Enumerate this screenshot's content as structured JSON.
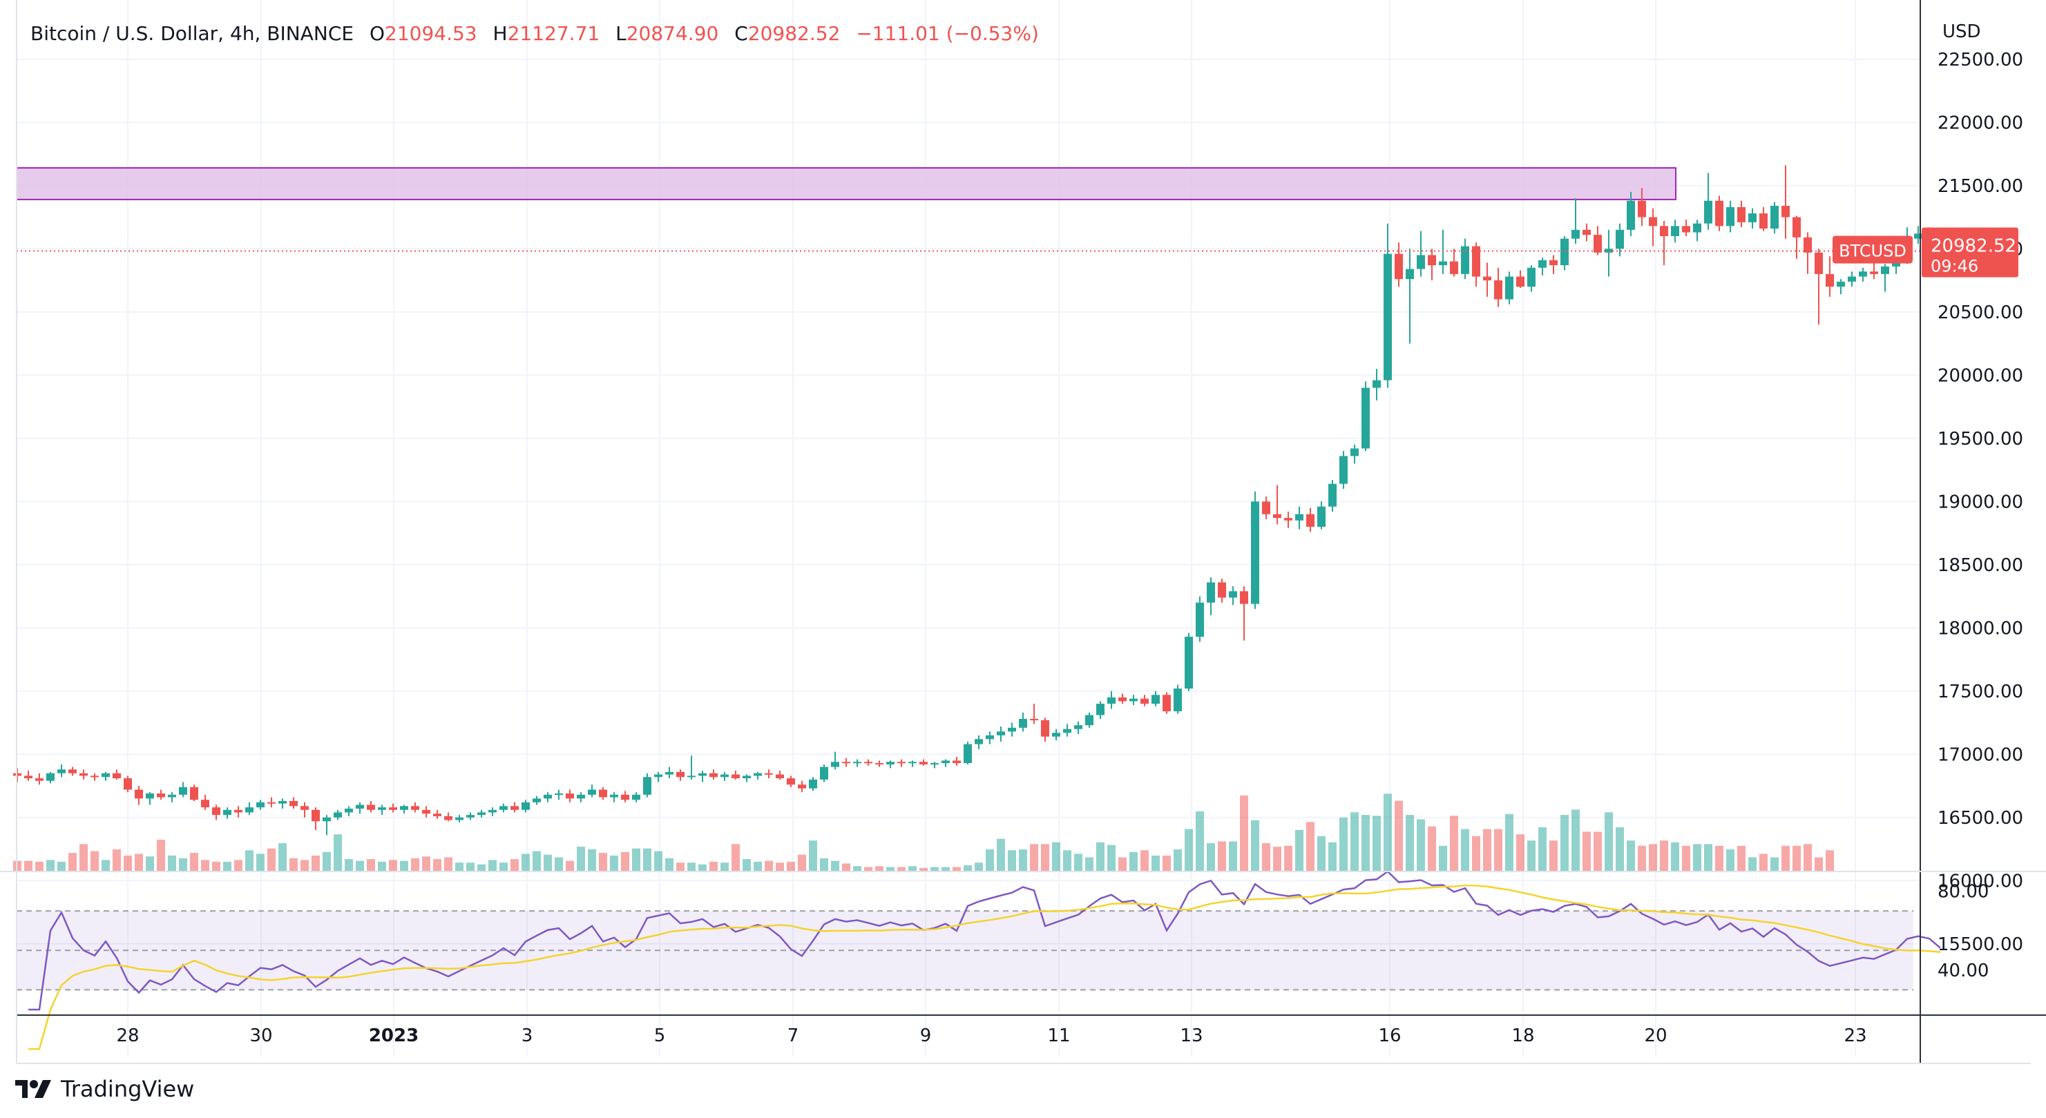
{
  "legend": {
    "symbol": "Bitcoin / U.S. Dollar, 4h, BINANCE",
    "open_label": "O",
    "open": "21094.53",
    "high_label": "H",
    "high": "21127.71",
    "low_label": "L",
    "low": "20874.90",
    "close_label": "C",
    "close": "20982.52",
    "change": "−111.01 (−0.53%)"
  },
  "price_axis": {
    "currency": "USD"
  },
  "last_price": {
    "symbol": "BTCUSD",
    "price": "20982.52",
    "countdown": "09:46"
  },
  "brand": {
    "name": "TradingView",
    "logo_icon": "tradingview-logo-icon"
  },
  "colors": {
    "up": "#26a69a",
    "down": "#ef5350",
    "rsi": "#7e57c2",
    "rsi_ma": "#f5d32d",
    "zone_fill": "#e1bee7",
    "zone_border": "#9c27b0",
    "up_volume": "#26a69a80",
    "down_volume": "#ef535080",
    "grid": "#f0f3fa"
  },
  "chart_data": {
    "type": "candlestick",
    "title": "Bitcoin / U.S. Dollar, 4h, BINANCE",
    "y_range": [
      15100,
      22750
    ],
    "y_ticks": [
      "22500.00",
      "22000.00",
      "21500.00",
      "21000.00",
      "20500.00",
      "20000.00",
      "19500.00",
      "19000.00",
      "18500.00",
      "18000.00",
      "17500.00",
      "17000.00",
      "16500.00",
      "16000.00",
      "15500.00"
    ],
    "x_ticks": [
      "28",
      "30",
      "2023",
      "3",
      "5",
      "7",
      "9",
      "11",
      "13",
      "16",
      "18",
      "20",
      "23"
    ],
    "resistance_zone": [
      21390,
      21640
    ],
    "last_price_line": 20982.52,
    "grid": true,
    "ohlc": [
      [
        16850,
        16890,
        16780,
        16830
      ],
      [
        16830,
        16870,
        16790,
        16810
      ],
      [
        16810,
        16850,
        16760,
        16790
      ],
      [
        16790,
        16860,
        16770,
        16850
      ],
      [
        16850,
        16920,
        16820,
        16880
      ],
      [
        16880,
        16900,
        16830,
        16850
      ],
      [
        16850,
        16880,
        16800,
        16830
      ],
      [
        16830,
        16850,
        16790,
        16820
      ],
      [
        16820,
        16860,
        16790,
        16850
      ],
      [
        16850,
        16880,
        16800,
        16810
      ],
      [
        16810,
        16830,
        16700,
        16720
      ],
      [
        16720,
        16750,
        16600,
        16650
      ],
      [
        16650,
        16700,
        16600,
        16690
      ],
      [
        16690,
        16720,
        16640,
        16660
      ],
      [
        16660,
        16700,
        16620,
        16680
      ],
      [
        16680,
        16780,
        16660,
        16740
      ],
      [
        16740,
        16760,
        16630,
        16640
      ],
      [
        16640,
        16680,
        16560,
        16580
      ],
      [
        16580,
        16600,
        16480,
        16520
      ],
      [
        16520,
        16580,
        16490,
        16560
      ],
      [
        16560,
        16590,
        16500,
        16540
      ],
      [
        16540,
        16620,
        16520,
        16580
      ],
      [
        16580,
        16640,
        16560,
        16620
      ],
      [
        16620,
        16660,
        16580,
        16610
      ],
      [
        16610,
        16650,
        16570,
        16630
      ],
      [
        16630,
        16660,
        16570,
        16590
      ],
      [
        16590,
        16620,
        16500,
        16560
      ],
      [
        16560,
        16580,
        16400,
        16470
      ],
      [
        16470,
        16520,
        16360,
        16500
      ],
      [
        16500,
        16560,
        16480,
        16540
      ],
      [
        16540,
        16590,
        16510,
        16570
      ],
      [
        16570,
        16620,
        16530,
        16600
      ],
      [
        16600,
        16630,
        16540,
        16560
      ],
      [
        16560,
        16600,
        16520,
        16580
      ],
      [
        16580,
        16610,
        16540,
        16560
      ],
      [
        16560,
        16600,
        16530,
        16590
      ],
      [
        16590,
        16620,
        16540,
        16560
      ],
      [
        16560,
        16590,
        16500,
        16530
      ],
      [
        16530,
        16560,
        16490,
        16510
      ],
      [
        16510,
        16540,
        16470,
        16480
      ],
      [
        16480,
        16520,
        16460,
        16500
      ],
      [
        16500,
        16540,
        16480,
        16520
      ],
      [
        16520,
        16560,
        16500,
        16540
      ],
      [
        16540,
        16580,
        16510,
        16560
      ],
      [
        16560,
        16610,
        16540,
        16590
      ],
      [
        16590,
        16620,
        16540,
        16560
      ],
      [
        16560,
        16640,
        16540,
        16620
      ],
      [
        16620,
        16670,
        16600,
        16650
      ],
      [
        16650,
        16700,
        16620,
        16680
      ],
      [
        16680,
        16720,
        16640,
        16690
      ],
      [
        16690,
        16720,
        16620,
        16650
      ],
      [
        16650,
        16700,
        16620,
        16680
      ],
      [
        16680,
        16760,
        16660,
        16720
      ],
      [
        16720,
        16740,
        16640,
        16660
      ],
      [
        16660,
        16700,
        16620,
        16680
      ],
      [
        16680,
        16710,
        16620,
        16640
      ],
      [
        16640,
        16700,
        16620,
        16680
      ],
      [
        16680,
        16850,
        16660,
        16820
      ],
      [
        16820,
        16860,
        16780,
        16840
      ],
      [
        16840,
        16900,
        16810,
        16860
      ],
      [
        16860,
        16880,
        16790,
        16820
      ],
      [
        16820,
        16990,
        16800,
        16830
      ],
      [
        16830,
        16870,
        16780,
        16850
      ],
      [
        16850,
        16880,
        16800,
        16820
      ],
      [
        16820,
        16860,
        16790,
        16840
      ],
      [
        16840,
        16870,
        16800,
        16810
      ],
      [
        16810,
        16840,
        16780,
        16830
      ],
      [
        16830,
        16860,
        16800,
        16850
      ],
      [
        16850,
        16880,
        16810,
        16840
      ],
      [
        16840,
        16870,
        16800,
        16810
      ],
      [
        16810,
        16830,
        16740,
        16760
      ],
      [
        16760,
        16790,
        16700,
        16730
      ],
      [
        16730,
        16820,
        16710,
        16800
      ],
      [
        16800,
        16920,
        16780,
        16900
      ],
      [
        16900,
        17020,
        16880,
        16940
      ],
      [
        16940,
        16970,
        16900,
        16930
      ],
      [
        16930,
        16960,
        16900,
        16940
      ],
      [
        16940,
        16960,
        16910,
        16930
      ],
      [
        16930,
        16950,
        16900,
        16920
      ],
      [
        16920,
        16950,
        16890,
        16940
      ],
      [
        16940,
        16960,
        16900,
        16930
      ],
      [
        16930,
        16950,
        16900,
        16940
      ],
      [
        16940,
        16960,
        16910,
        16920
      ],
      [
        16920,
        16940,
        16890,
        16930
      ],
      [
        16930,
        16960,
        16900,
        16950
      ],
      [
        16950,
        16980,
        16910,
        16930
      ],
      [
        16930,
        17100,
        16920,
        17080
      ],
      [
        17080,
        17150,
        17040,
        17120
      ],
      [
        17120,
        17180,
        17080,
        17150
      ],
      [
        17150,
        17220,
        17100,
        17180
      ],
      [
        17180,
        17250,
        17140,
        17210
      ],
      [
        17210,
        17330,
        17180,
        17280
      ],
      [
        17280,
        17400,
        17240,
        17270
      ],
      [
        17270,
        17290,
        17100,
        17140
      ],
      [
        17140,
        17200,
        17110,
        17170
      ],
      [
        17170,
        17240,
        17140,
        17200
      ],
      [
        17200,
        17260,
        17160,
        17230
      ],
      [
        17230,
        17330,
        17210,
        17310
      ],
      [
        17310,
        17420,
        17280,
        17400
      ],
      [
        17400,
        17500,
        17360,
        17450
      ],
      [
        17450,
        17480,
        17400,
        17420
      ],
      [
        17420,
        17470,
        17390,
        17440
      ],
      [
        17440,
        17470,
        17380,
        17400
      ],
      [
        17400,
        17500,
        17380,
        17470
      ],
      [
        17470,
        17490,
        17320,
        17340
      ],
      [
        17340,
        17550,
        17320,
        17520
      ],
      [
        17520,
        17960,
        17500,
        17930
      ],
      [
        17930,
        18250,
        17890,
        18200
      ],
      [
        18200,
        18400,
        18100,
        18360
      ],
      [
        18360,
        18390,
        18200,
        18240
      ],
      [
        18240,
        18330,
        18180,
        18290
      ],
      [
        18290,
        18330,
        17900,
        18190
      ],
      [
        18190,
        19080,
        18150,
        19000
      ],
      [
        19000,
        19040,
        18860,
        18900
      ],
      [
        18900,
        19130,
        18820,
        18870
      ],
      [
        18870,
        18920,
        18790,
        18850
      ],
      [
        18850,
        18960,
        18780,
        18900
      ],
      [
        18900,
        18950,
        18760,
        18800
      ],
      [
        18800,
        19000,
        18780,
        18960
      ],
      [
        18960,
        19170,
        18920,
        19140
      ],
      [
        19140,
        19400,
        19100,
        19360
      ],
      [
        19360,
        19450,
        19300,
        19420
      ],
      [
        19420,
        19950,
        19400,
        19900
      ],
      [
        19900,
        20050,
        19800,
        19960
      ],
      [
        19960,
        21200,
        19900,
        20960
      ],
      [
        20960,
        21050,
        20700,
        20760
      ],
      [
        20760,
        21000,
        20250,
        20840
      ],
      [
        20840,
        21140,
        20780,
        20950
      ],
      [
        20950,
        21000,
        20750,
        20870
      ],
      [
        20870,
        21150,
        20800,
        20900
      ],
      [
        20900,
        21000,
        20780,
        20800
      ],
      [
        20800,
        21080,
        20760,
        21020
      ],
      [
        21020,
        21050,
        20700,
        20780
      ],
      [
        20780,
        20890,
        20620,
        20750
      ],
      [
        20750,
        20850,
        20540,
        20600
      ],
      [
        20600,
        20820,
        20560,
        20780
      ],
      [
        20780,
        20830,
        20690,
        20700
      ],
      [
        20700,
        20870,
        20660,
        20850
      ],
      [
        20850,
        20930,
        20790,
        20910
      ],
      [
        20910,
        20950,
        20800,
        20870
      ],
      [
        20870,
        21100,
        20830,
        21080
      ],
      [
        21080,
        21400,
        21040,
        21150
      ],
      [
        21150,
        21200,
        21060,
        21110
      ],
      [
        21110,
        21180,
        20950,
        20970
      ],
      [
        20970,
        21150,
        20780,
        21000
      ],
      [
        21000,
        21200,
        20940,
        21150
      ],
      [
        21150,
        21450,
        21100,
        21380
      ],
      [
        21380,
        21480,
        21180,
        21250
      ],
      [
        21250,
        21320,
        21020,
        21180
      ],
      [
        21180,
        21220,
        20870,
        21100
      ],
      [
        21100,
        21230,
        21050,
        21180
      ],
      [
        21180,
        21230,
        21100,
        21130
      ],
      [
        21130,
        21230,
        21060,
        21200
      ],
      [
        21200,
        21600,
        21150,
        21380
      ],
      [
        21380,
        21420,
        21140,
        21180
      ],
      [
        21180,
        21380,
        21130,
        21330
      ],
      [
        21330,
        21380,
        21170,
        21210
      ],
      [
        21210,
        21320,
        21160,
        21280
      ],
      [
        21280,
        21330,
        21140,
        21160
      ],
      [
        21160,
        21370,
        21120,
        21340
      ],
      [
        21340,
        21660,
        21080,
        21250
      ],
      [
        21250,
        21260,
        20920,
        21090
      ],
      [
        21090,
        21130,
        20800,
        20970
      ],
      [
        20970,
        21000,
        20400,
        20800
      ],
      [
        20800,
        20940,
        20620,
        20700
      ],
      [
        20700,
        20760,
        20640,
        20740
      ],
      [
        20740,
        20820,
        20700,
        20780
      ],
      [
        20780,
        20850,
        20740,
        20820
      ],
      [
        20820,
        20890,
        20760,
        20800
      ],
      [
        20800,
        20880,
        20660,
        20860
      ],
      [
        20860,
        20940,
        20800,
        20920
      ],
      [
        20920,
        21170,
        20880,
        21080
      ],
      [
        21080,
        21180,
        21040,
        21120
      ],
      [
        21120,
        21170,
        21060,
        21094
      ],
      [
        21094.53,
        21127.71,
        20874.9,
        20982.52
      ]
    ],
    "volume_relative": [
      0.18,
      0.19,
      0.17,
      0.2,
      0.16,
      0.3,
      0.46,
      0.34,
      0.19,
      0.36,
      0.26,
      0.3,
      0.25,
      0.53,
      0.26,
      0.21,
      0.31,
      0.2,
      0.17,
      0.16,
      0.2,
      0.35,
      0.29,
      0.38,
      0.47,
      0.22,
      0.19,
      0.27,
      0.32,
      0.62,
      0.21,
      0.18,
      0.21,
      0.16,
      0.19,
      0.18,
      0.22,
      0.25,
      0.2,
      0.23,
      0.14,
      0.15,
      0.12,
      0.19,
      0.15,
      0.2,
      0.3,
      0.33,
      0.28,
      0.23,
      0.18,
      0.41,
      0.36,
      0.31,
      0.27,
      0.33,
      0.38,
      0.39,
      0.34,
      0.22,
      0.15,
      0.15,
      0.12,
      0.16,
      0.15,
      0.45,
      0.2,
      0.16,
      0.17,
      0.14,
      0.16,
      0.28,
      0.52,
      0.22,
      0.17,
      0.13,
      0.09,
      0.07,
      0.09,
      0.08,
      0.07,
      0.09,
      0.06,
      0.07,
      0.08,
      0.07,
      0.1,
      0.15,
      0.37,
      0.54,
      0.35,
      0.37,
      0.46,
      0.45,
      0.48,
      0.35,
      0.29,
      0.24,
      0.48,
      0.44,
      0.24,
      0.32,
      0.35,
      0.26,
      0.27,
      0.37,
      0.71,
      1.0,
      0.47,
      0.5,
      0.5,
      1.26,
      0.86,
      0.47,
      0.41,
      0.42,
      0.69,
      0.82,
      0.59,
      0.48,
      0.9,
      0.98,
      0.94,
      0.93,
      1.29,
      1.17,
      0.94,
      0.86,
      0.75,
      0.42,
      0.92,
      0.71,
      0.58,
      0.71,
      0.71,
      0.95,
      0.62,
      0.52,
      0.74,
      0.52,
      0.94,
      1.03,
      0.66,
      0.66,
      0.98,
      0.73,
      0.52,
      0.42,
      0.45,
      0.52,
      0.48,
      0.42,
      0.46,
      0.45,
      0.42,
      0.36,
      0.42,
      0.24,
      0.29,
      0.24,
      0.42,
      0.42,
      0.45,
      0.24,
      0.35
    ],
    "volume_bars": [
      12,
      12,
      11,
      13,
      11,
      21,
      31,
      23,
      13,
      25,
      18,
      20,
      17,
      36,
      18,
      15,
      21,
      13,
      11,
      11,
      13,
      24,
      20,
      26,
      32,
      15,
      13,
      18,
      22,
      42,
      14,
      12,
      14,
      11,
      13,
      12,
      15,
      17,
      14,
      16,
      10,
      10,
      8,
      13,
      10,
      14,
      20,
      23,
      19,
      16,
      12,
      28,
      25,
      21,
      18,
      22,
      26,
      26,
      23,
      15,
      10,
      10,
      8,
      11,
      10,
      31,
      14,
      11,
      12,
      10,
      11,
      19,
      35,
      15,
      12,
      9,
      6,
      5,
      6,
      5,
      5,
      6,
      4,
      5,
      5,
      5,
      7,
      10,
      25,
      37,
      24,
      25,
      31,
      31,
      33,
      24,
      20,
      16,
      33,
      30,
      16,
      22,
      24,
      18,
      18,
      25,
      48,
      68,
      32,
      34,
      34,
      86,
      58,
      32,
      28,
      29,
      47,
      56,
      40,
      33,
      61,
      67,
      64,
      63,
      88,
      80,
      64,
      59,
      51,
      29,
      63,
      48,
      40,
      48,
      48,
      65,
      42,
      35,
      50,
      35,
      64,
      70,
      45,
      45,
      67,
      50,
      35,
      29,
      31,
      35,
      33,
      29,
      31,
      31,
      29,
      25,
      29,
      16,
      20,
      16,
      29,
      29,
      31,
      16,
      24
    ],
    "rsi": {
      "y_ticks": [
        "80.00",
        "40.00"
      ],
      "bands": [
        70,
        50,
        30
      ],
      "y_range": [
        20,
        90
      ]
    }
  }
}
